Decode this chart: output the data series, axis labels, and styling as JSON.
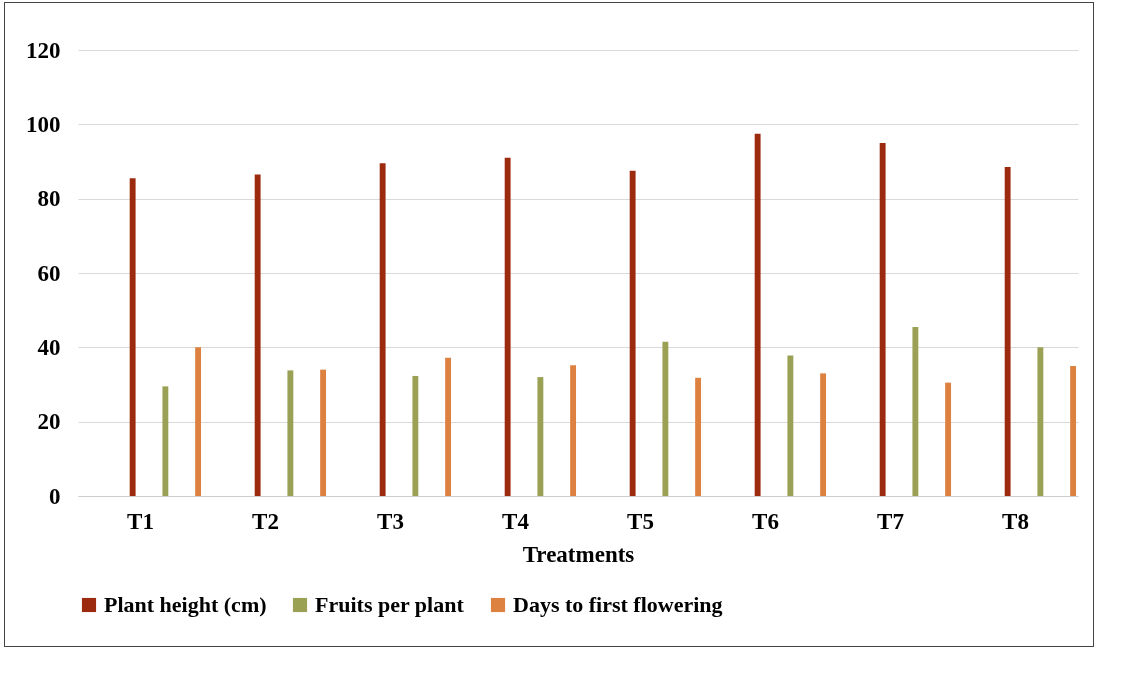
{
  "chart_data": {
    "type": "bar",
    "xlabel": "Treatments",
    "categories": [
      "T1",
      "T2",
      "T3",
      "T4",
      "T5",
      "T6",
      "T7",
      "T8"
    ],
    "series": [
      {
        "name": "Plant height (cm)",
        "color": "#9c2a0e",
        "values": [
          85.5,
          86.5,
          89.5,
          91,
          87.5,
          97.5,
          95,
          88.5
        ]
      },
      {
        "name": "Fruits per plant",
        "color": "#9aa155",
        "values": [
          29.5,
          33.8,
          32.3,
          32,
          41.5,
          37.8,
          45.5,
          40
        ]
      },
      {
        "name": "Days to first flowering",
        "color": "#dc8140",
        "values": [
          40,
          34,
          37.2,
          35.2,
          31.8,
          33,
          30.5,
          35
        ]
      }
    ],
    "ylim": [
      0,
      120
    ],
    "yticks": [
      0,
      20,
      40,
      60,
      80,
      100,
      120
    ],
    "grid": "y",
    "legend": "bottom"
  }
}
